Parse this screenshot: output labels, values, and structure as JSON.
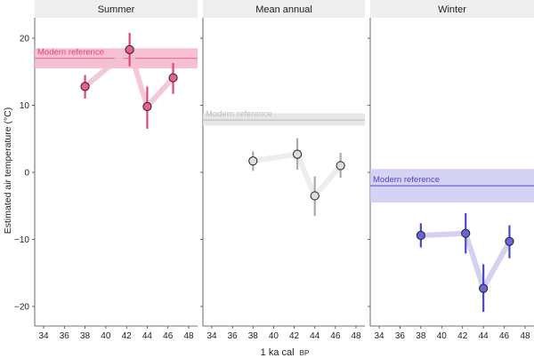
{
  "chart_data": {
    "type": "scatter",
    "ylabel": "Estimated air temperature (°C)",
    "xlabel_main": "1 ka cal",
    "xlabel_suffix": "BP",
    "ylim": [
      -24,
      24
    ],
    "y_ticks": [
      20,
      10,
      0,
      -10,
      -20
    ],
    "x_ticks": [
      34,
      36,
      38,
      40,
      42,
      44,
      46,
      48
    ],
    "panels": [
      {
        "title": "Summer",
        "color": "#e0457b",
        "point_fill": "#e8608f",
        "line_color": "#f2c2d4",
        "reference": {
          "label": "Modern reference",
          "value": 17.0,
          "low": 15.5,
          "high": 18.5,
          "band_color": "#f5b5c9",
          "line_color": "#e57aa1",
          "text_color": "#e0457b"
        },
        "points": [
          {
            "x": 38.0,
            "y": 12.8,
            "low": 11.0,
            "high": 14.5
          },
          {
            "x": 42.3,
            "y": 18.3,
            "low": 15.8,
            "high": 20.8
          },
          {
            "x": 44.0,
            "y": 9.8,
            "low": 6.5,
            "high": 12.8
          },
          {
            "x": 46.5,
            "y": 14.1,
            "low": 11.7,
            "high": 16.3
          }
        ]
      },
      {
        "title": "Mean annual",
        "color": "#aaaaaa",
        "point_fill": "#dddddd",
        "line_color": "#ebebeb",
        "reference": {
          "label": "Modern reference",
          "value": 7.8,
          "low": 7.0,
          "high": 8.8,
          "band_color": "#e3e3e3",
          "line_color": "#c2c2c2",
          "text_color": "#bdbdbd"
        },
        "points": [
          {
            "x": 38.0,
            "y": 1.7,
            "low": 0.2,
            "high": 3.1
          },
          {
            "x": 42.3,
            "y": 2.7,
            "low": 0.4,
            "high": 5.1
          },
          {
            "x": 44.0,
            "y": -3.5,
            "low": -6.5,
            "high": -0.6
          },
          {
            "x": 46.5,
            "y": 1.0,
            "low": -0.8,
            "high": 2.9
          }
        ]
      },
      {
        "title": "Winter",
        "color": "#4d46c8",
        "point_fill": "#6a64d6",
        "line_color": "#cfcdf0",
        "reference": {
          "label": "Modern reference",
          "value": -2.0,
          "low": -4.5,
          "high": 0.5,
          "band_color": "#cdcbf1",
          "line_color": "#6d66d4",
          "text_color": "#4d46c8"
        },
        "points": [
          {
            "x": 38.0,
            "y": -9.4,
            "low": -11.2,
            "high": -7.6
          },
          {
            "x": 42.3,
            "y": -9.1,
            "low": -12.1,
            "high": -6.1
          },
          {
            "x": 44.0,
            "y": -17.3,
            "low": -20.8,
            "high": -13.7
          },
          {
            "x": 46.5,
            "y": -10.3,
            "low": -12.8,
            "high": -7.9
          }
        ]
      }
    ]
  }
}
